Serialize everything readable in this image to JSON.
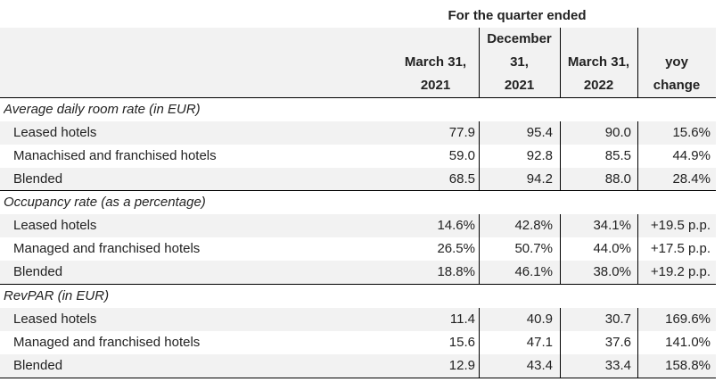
{
  "header": {
    "group_label": "For the quarter ended",
    "columns": [
      [
        "March 31,",
        "2021"
      ],
      [
        "December",
        "31,",
        "2021"
      ],
      [
        "March 31,",
        "2022"
      ],
      [
        "yoy",
        "change"
      ]
    ]
  },
  "sections": [
    {
      "title": "Average daily room rate (in EUR)",
      "rows": [
        {
          "label": "Leased hotels",
          "values": [
            "77.9",
            "95.4",
            "90.0",
            "15.6%"
          ]
        },
        {
          "label": "Manachised and franchised hotels",
          "values": [
            "59.0",
            "92.8",
            "85.5",
            "44.9%"
          ]
        },
        {
          "label": "Blended",
          "values": [
            "68.5",
            "94.2",
            "88.0",
            "28.4%"
          ]
        }
      ]
    },
    {
      "title": "Occupancy rate (as a percentage)",
      "rows": [
        {
          "label": "Leased hotels",
          "values": [
            "14.6%",
            "42.8%",
            "34.1%",
            "+19.5 p.p."
          ]
        },
        {
          "label": "Managed and franchised hotels",
          "values": [
            "26.5%",
            "50.7%",
            "44.0%",
            "+17.5 p.p."
          ]
        },
        {
          "label": "Blended",
          "values": [
            "18.8%",
            "46.1%",
            "38.0%",
            "+19.2 p.p."
          ]
        }
      ]
    },
    {
      "title": "RevPAR (in EUR)",
      "rows": [
        {
          "label": "Leased hotels",
          "values": [
            "11.4",
            "40.9",
            "30.7",
            "169.6%"
          ]
        },
        {
          "label": "Managed and franchised hotels",
          "values": [
            "15.6",
            "47.1",
            "37.6",
            "141.0%"
          ]
        },
        {
          "label": "Blended",
          "values": [
            "12.9",
            "43.4",
            "33.4",
            "158.8%"
          ]
        }
      ]
    }
  ]
}
